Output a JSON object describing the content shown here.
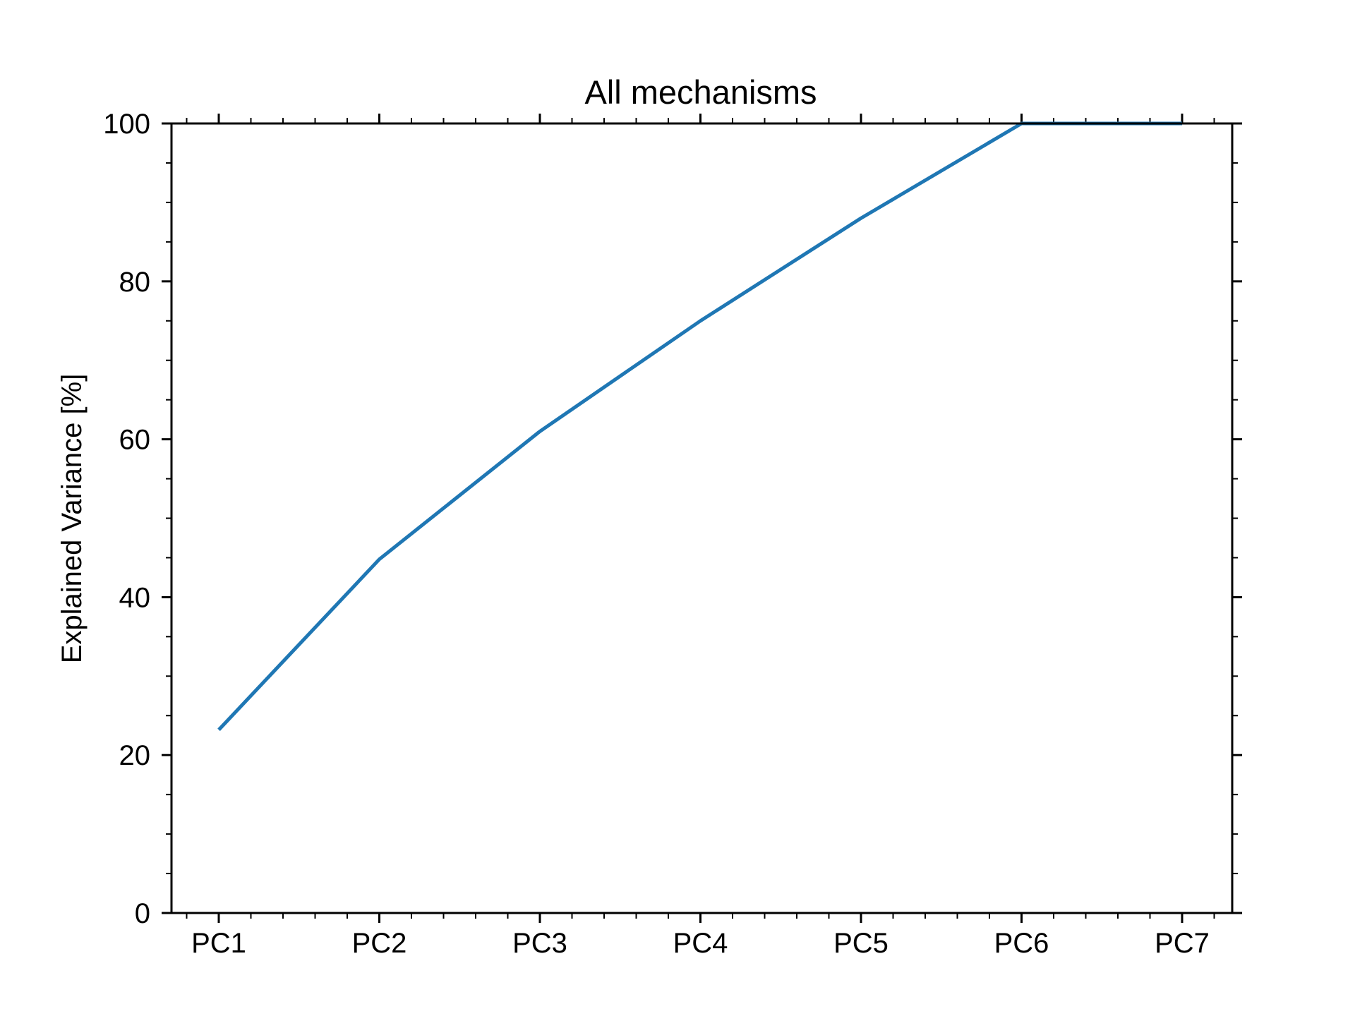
{
  "chart_data": {
    "type": "line",
    "title": "All mechanisms",
    "xlabel": "",
    "ylabel": "Explained Variance [%]",
    "categories": [
      "PC1",
      "PC2",
      "PC3",
      "PC4",
      "PC5",
      "PC6",
      "PC7"
    ],
    "series": [
      {
        "values": [
          23.2,
          44.8,
          61.0,
          75.0,
          88.0,
          100.0,
          100.0
        ],
        "color": "#1f77b4"
      }
    ],
    "ylim": [
      0,
      100
    ],
    "yticks": [
      0,
      20,
      40,
      60,
      80,
      100
    ],
    "grid": false,
    "legend": "none"
  }
}
